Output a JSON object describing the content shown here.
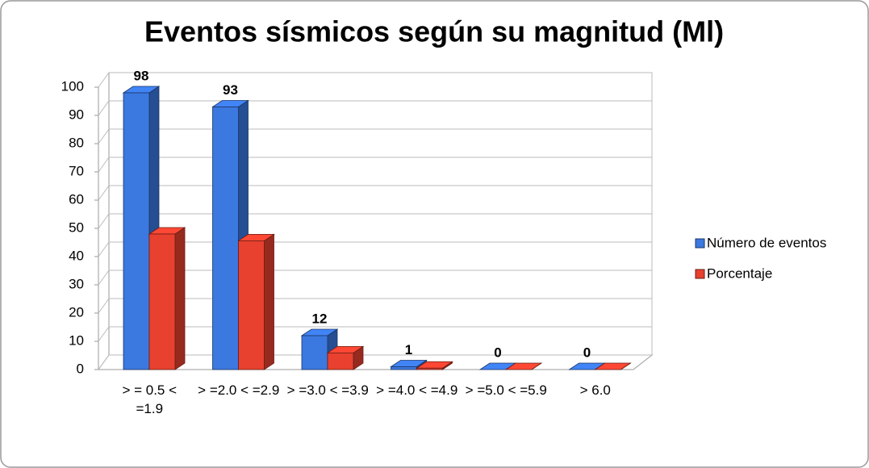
{
  "chart_data": {
    "type": "bar3d",
    "title": "Eventos sísmicos según su magnitud (Ml)",
    "categories": [
      "> = 0.5 < =1.9",
      "> =2.0 < =2.9",
      "> =3.0 < =3.9",
      "> =4.0 < =4.9",
      "> =5.0 < =5.9",
      "> 6.0"
    ],
    "series": [
      {
        "name": "Número de eventos",
        "color": "#3b78e0",
        "values": [
          98,
          93,
          12,
          1,
          0,
          0
        ]
      },
      {
        "name": "Porcentaje",
        "color": "#e8412f",
        "values": [
          48,
          45.6,
          5.9,
          0.5,
          0,
          0
        ]
      }
    ],
    "ylim": [
      0,
      100
    ],
    "yticks": [
      0,
      10,
      20,
      30,
      40,
      50,
      60,
      70,
      80,
      90,
      100
    ],
    "grid": true,
    "legend": "right"
  }
}
